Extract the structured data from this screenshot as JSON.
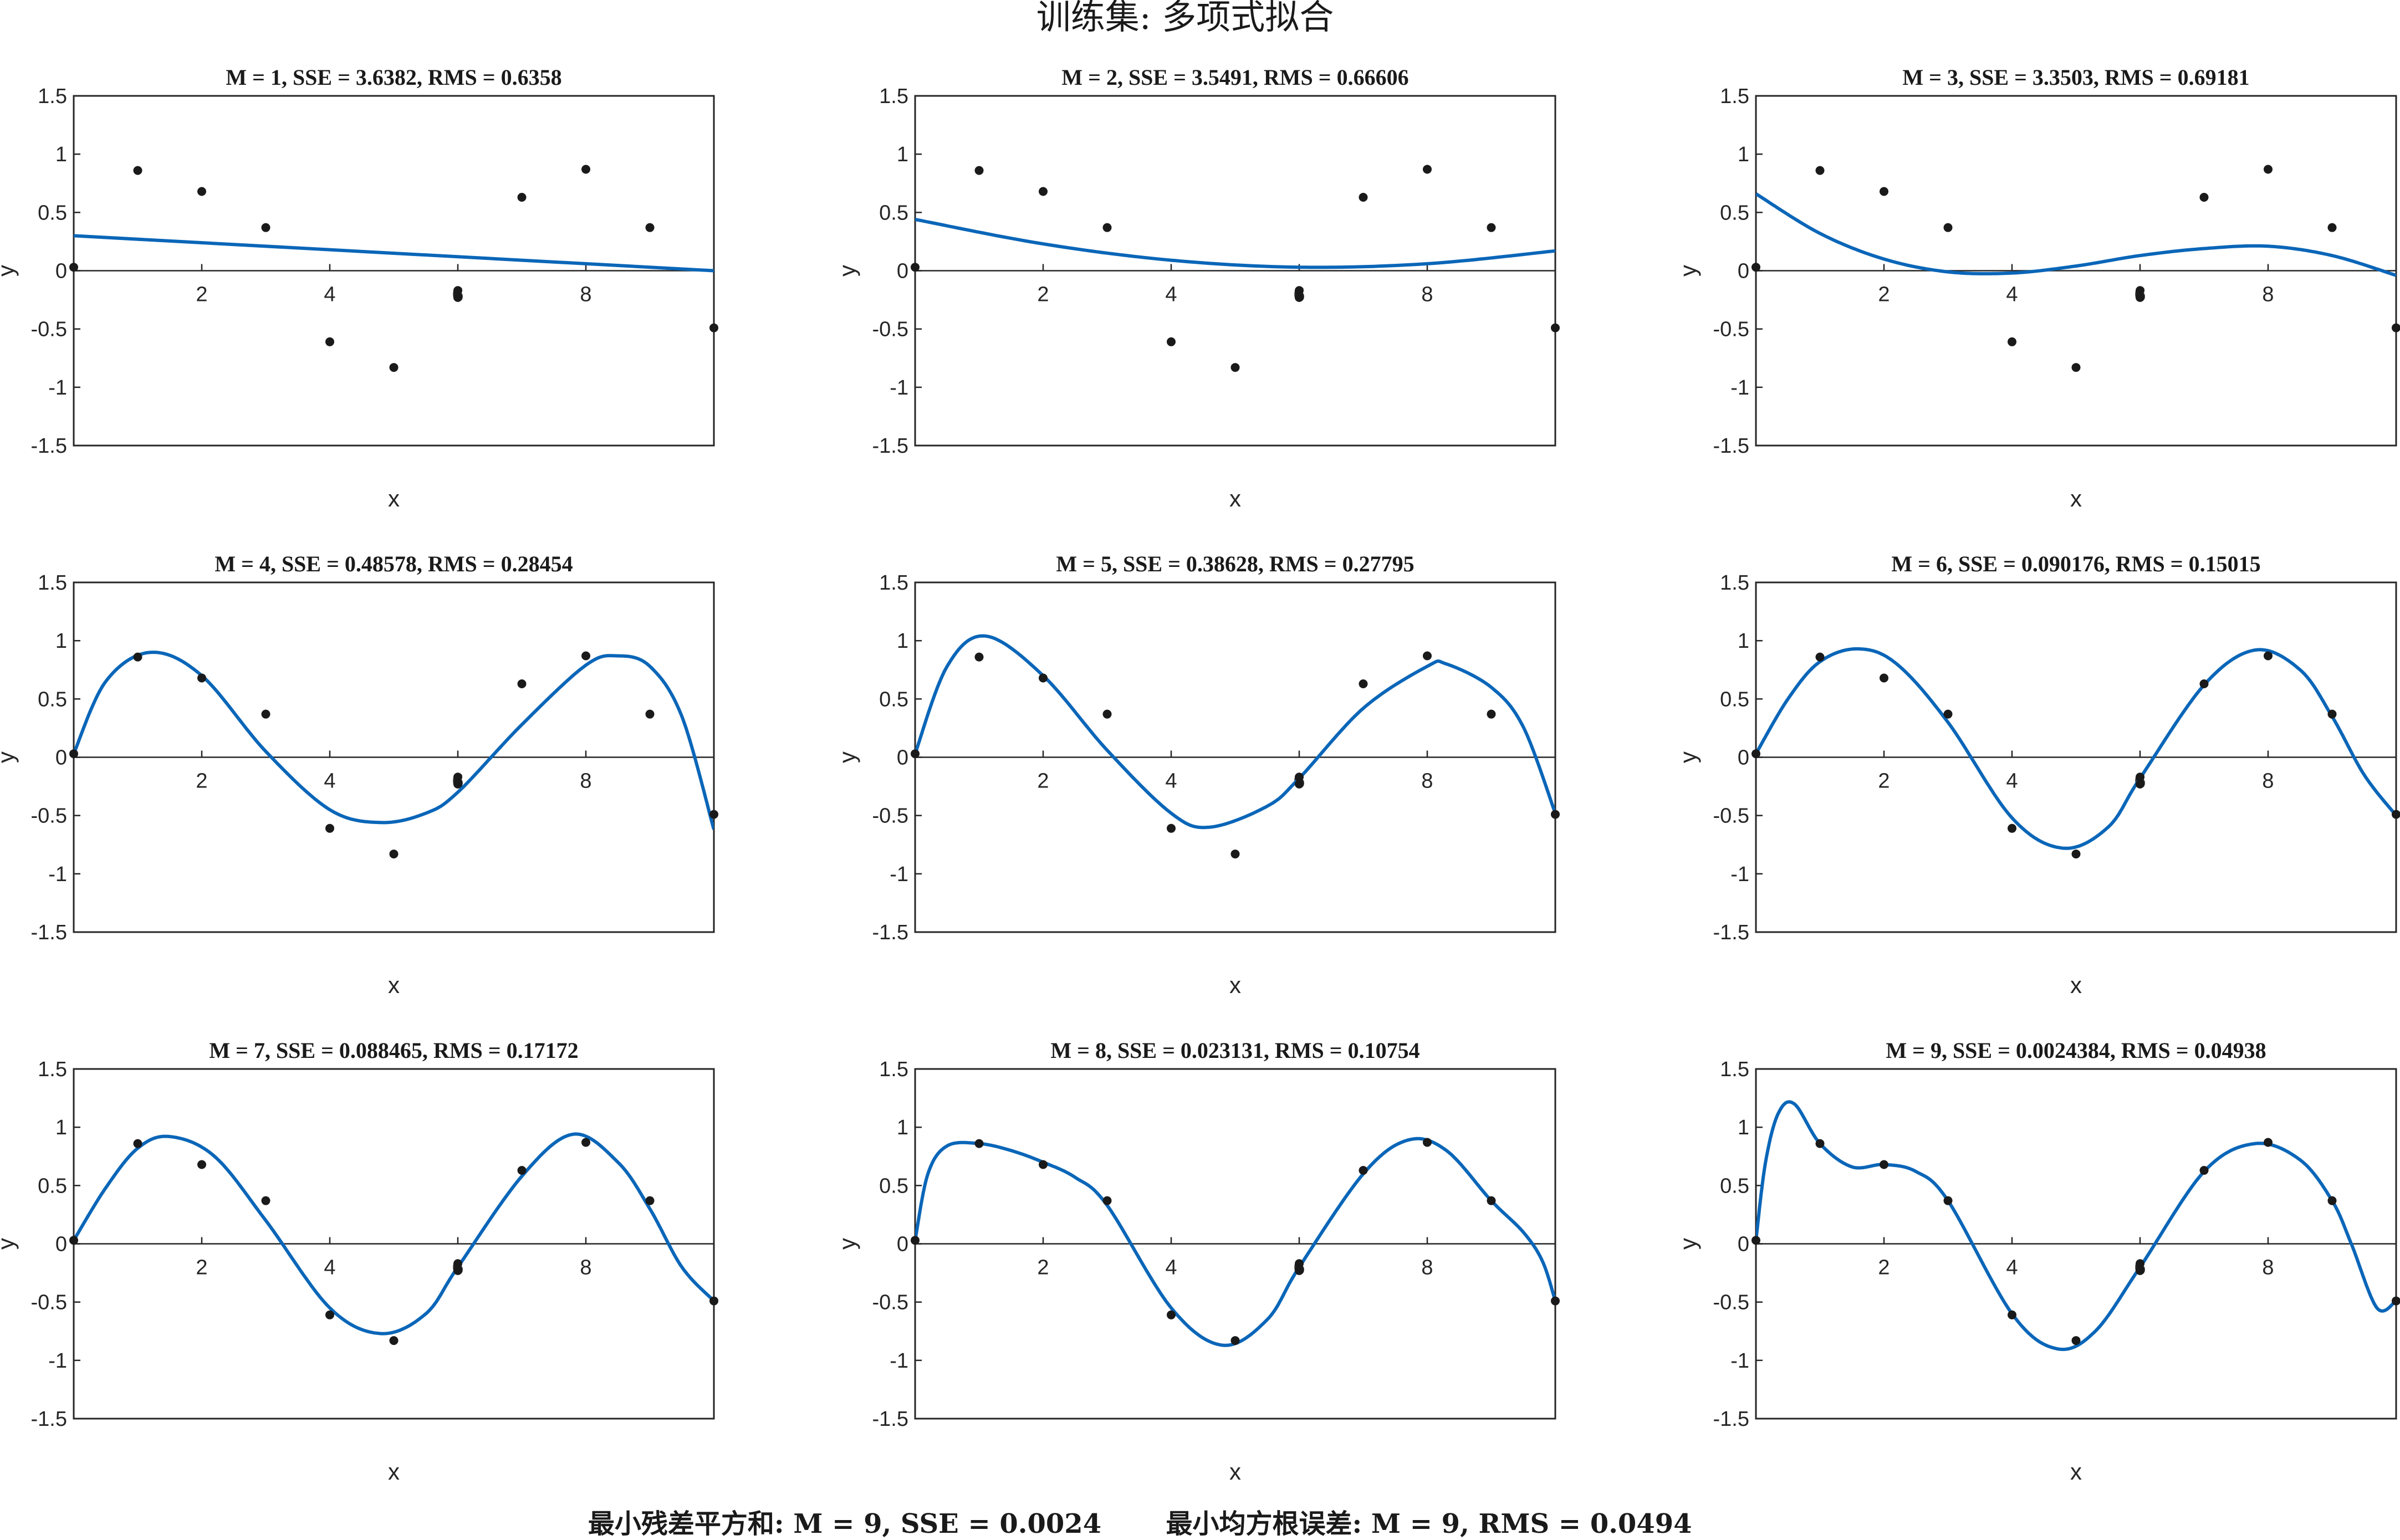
{
  "figure_title": "训练集: 多项式拟合",
  "summary": {
    "min_sse": "最小残差平方和: M = 9, SSE = 0.0024",
    "min_rms": "最小均方根误差: M = 9, RMS = 0.0494"
  },
  "chart_data": [
    {
      "type": "line",
      "title": "M = 1, SSE = 3.6382, RMS = 0.6358",
      "xlabel": "x",
      "ylabel": "y",
      "xlim": [
        0,
        10
      ],
      "ylim": [
        -1.5,
        1.5
      ],
      "xticks": [
        2,
        4,
        6,
        8
      ],
      "yticks": [
        1.5,
        1,
        0.5,
        0,
        -0.5,
        -1,
        -1.5
      ],
      "points": {
        "x": [
          0,
          1,
          2,
          3,
          4,
          5,
          6,
          6,
          7,
          8,
          9,
          10
        ],
        "y": [
          0.03,
          0.86,
          0.68,
          0.37,
          -0.61,
          -0.83,
          -0.17,
          -0.23,
          0.63,
          0.87,
          0.37,
          -0.49
        ]
      },
      "fit": {
        "x": [
          0,
          10
        ],
        "y": [
          0.3,
          0.0
        ]
      }
    },
    {
      "type": "line",
      "title": "M = 2, SSE = 3.5491, RMS = 0.66606",
      "xlabel": "x",
      "ylabel": "y",
      "xlim": [
        0,
        10
      ],
      "ylim": [
        -1.5,
        1.5
      ],
      "xticks": [
        2,
        4,
        6,
        8
      ],
      "yticks": [
        1.5,
        1,
        0.5,
        0,
        -0.5,
        -1,
        -1.5
      ],
      "points": {
        "x": [
          0,
          1,
          2,
          3,
          4,
          5,
          6,
          6,
          7,
          8,
          9,
          10
        ],
        "y": [
          0.03,
          0.86,
          0.68,
          0.37,
          -0.61,
          -0.83,
          -0.17,
          -0.23,
          0.63,
          0.87,
          0.37,
          -0.49
        ]
      },
      "fit": {
        "x": [
          0,
          2,
          4,
          6,
          8,
          10
        ],
        "y": [
          0.44,
          0.23,
          0.09,
          0.03,
          0.06,
          0.17
        ]
      }
    },
    {
      "type": "line",
      "title": "M = 3, SSE = 3.3503, RMS = 0.69181",
      "xlabel": "x",
      "ylabel": "y",
      "xlim": [
        0,
        10
      ],
      "ylim": [
        -1.5,
        1.5
      ],
      "xticks": [
        2,
        4,
        6,
        8
      ],
      "yticks": [
        1.5,
        1,
        0.5,
        0,
        -0.5,
        -1,
        -1.5
      ],
      "points": {
        "x": [
          0,
          1,
          2,
          3,
          4,
          5,
          6,
          6,
          7,
          8,
          9,
          10
        ],
        "y": [
          0.03,
          0.86,
          0.68,
          0.37,
          -0.61,
          -0.83,
          -0.17,
          -0.23,
          0.63,
          0.87,
          0.37,
          -0.49
        ]
      },
      "fit": {
        "x": [
          0,
          1,
          2,
          3,
          4,
          5,
          6,
          7,
          8,
          9,
          10
        ],
        "y": [
          0.66,
          0.32,
          0.1,
          -0.01,
          -0.02,
          0.04,
          0.13,
          0.19,
          0.21,
          0.13,
          -0.04
        ]
      }
    },
    {
      "type": "line",
      "title": "M = 4, SSE = 0.48578, RMS = 0.28454",
      "xlabel": "x",
      "ylabel": "y",
      "xlim": [
        0,
        10
      ],
      "ylim": [
        -1.5,
        1.5
      ],
      "xticks": [
        2,
        4,
        6,
        8
      ],
      "yticks": [
        1.5,
        1,
        0.5,
        0,
        -0.5,
        -1,
        -1.5
      ],
      "points": {
        "x": [
          0,
          1,
          2,
          3,
          4,
          5,
          6,
          6,
          7,
          8,
          9,
          10
        ],
        "y": [
          0.03,
          0.86,
          0.68,
          0.37,
          -0.61,
          -0.83,
          -0.17,
          -0.23,
          0.63,
          0.87,
          0.37,
          -0.49
        ]
      },
      "fit": {
        "x": [
          0,
          0.5,
          1.2,
          2,
          3,
          4,
          4.8,
          5.5,
          6,
          7,
          8,
          8.5,
          9,
          9.5,
          10
        ],
        "y": [
          0.03,
          0.65,
          0.9,
          0.7,
          0.05,
          -0.45,
          -0.56,
          -0.48,
          -0.3,
          0.28,
          0.79,
          0.87,
          0.78,
          0.35,
          -0.62
        ]
      }
    },
    {
      "type": "line",
      "title": "M = 5, SSE = 0.38628, RMS = 0.27795",
      "xlabel": "x",
      "ylabel": "y",
      "xlim": [
        0,
        10
      ],
      "ylim": [
        -1.5,
        1.5
      ],
      "xticks": [
        2,
        4,
        6,
        8
      ],
      "yticks": [
        1.5,
        1,
        0.5,
        0,
        -0.5,
        -1,
        -1.5
      ],
      "points": {
        "x": [
          0,
          1,
          2,
          3,
          4,
          5,
          6,
          6,
          7,
          8,
          9,
          10
        ],
        "y": [
          0.03,
          0.86,
          0.68,
          0.37,
          -0.61,
          -0.83,
          -0.17,
          -0.23,
          0.63,
          0.87,
          0.37,
          -0.49
        ]
      },
      "fit": {
        "x": [
          0,
          0.5,
          1.1,
          2,
          3,
          4,
          4.6,
          5.5,
          6,
          7,
          8,
          8.3,
          9,
          9.5,
          10
        ],
        "y": [
          0.03,
          0.78,
          1.04,
          0.7,
          0.06,
          -0.48,
          -0.6,
          -0.42,
          -0.18,
          0.42,
          0.78,
          0.8,
          0.6,
          0.26,
          -0.48
        ]
      }
    },
    {
      "type": "line",
      "title": "M = 6, SSE = 0.090176, RMS = 0.15015",
      "xlabel": "x",
      "ylabel": "y",
      "xlim": [
        0,
        10
      ],
      "ylim": [
        -1.5,
        1.5
      ],
      "xticks": [
        2,
        4,
        6,
        8
      ],
      "yticks": [
        1.5,
        1,
        0.5,
        0,
        -0.5,
        -1,
        -1.5
      ],
      "points": {
        "x": [
          0,
          1,
          2,
          3,
          4,
          5,
          6,
          6,
          7,
          8,
          9,
          10
        ],
        "y": [
          0.03,
          0.86,
          0.68,
          0.37,
          -0.61,
          -0.83,
          -0.17,
          -0.23,
          0.63,
          0.87,
          0.37,
          -0.49
        ]
      },
      "fit": {
        "x": [
          0,
          0.5,
          1,
          1.6,
          2.2,
          3,
          4,
          4.8,
          5.5,
          6,
          7,
          7.8,
          8.5,
          9,
          9.5,
          10
        ],
        "y": [
          0.03,
          0.5,
          0.82,
          0.93,
          0.8,
          0.3,
          -0.52,
          -0.78,
          -0.6,
          -0.18,
          0.62,
          0.92,
          0.75,
          0.35,
          -0.15,
          -0.5
        ]
      }
    },
    {
      "type": "line",
      "title": "M = 7, SSE = 0.088465, RMS = 0.17172",
      "xlabel": "x",
      "ylabel": "y",
      "xlim": [
        0,
        10
      ],
      "ylim": [
        -1.5,
        1.5
      ],
      "xticks": [
        2,
        4,
        6,
        8
      ],
      "yticks": [
        1.5,
        1,
        0.5,
        0,
        -0.5,
        -1,
        -1.5
      ],
      "points": {
        "x": [
          0,
          1,
          2,
          3,
          4,
          5,
          6,
          6,
          7,
          8,
          9,
          10
        ],
        "y": [
          0.03,
          0.86,
          0.68,
          0.37,
          -0.61,
          -0.83,
          -0.17,
          -0.23,
          0.63,
          0.87,
          0.37,
          -0.49
        ]
      },
      "fit": {
        "x": [
          0,
          0.5,
          1,
          1.5,
          2.2,
          3,
          4,
          4.8,
          5.5,
          6,
          7,
          7.8,
          8.5,
          9,
          9.5,
          10
        ],
        "y": [
          0.03,
          0.48,
          0.82,
          0.92,
          0.75,
          0.2,
          -0.55,
          -0.77,
          -0.6,
          -0.2,
          0.58,
          0.94,
          0.7,
          0.3,
          -0.2,
          -0.49
        ]
      }
    },
    {
      "type": "line",
      "title": "M = 8, SSE = 0.023131, RMS = 0.10754",
      "xlabel": "x",
      "ylabel": "y",
      "xlim": [
        0,
        10
      ],
      "ylim": [
        -1.5,
        1.5
      ],
      "xticks": [
        2,
        4,
        6,
        8
      ],
      "yticks": [
        1.5,
        1,
        0.5,
        0,
        -0.5,
        -1,
        -1.5
      ],
      "points": {
        "x": [
          0,
          1,
          2,
          3,
          4,
          5,
          6,
          6,
          7,
          8,
          9,
          10
        ],
        "y": [
          0.03,
          0.86,
          0.68,
          0.37,
          -0.61,
          -0.83,
          -0.17,
          -0.23,
          0.63,
          0.87,
          0.37,
          -0.49
        ]
      },
      "fit": {
        "x": [
          0,
          0.2,
          0.5,
          1,
          1.5,
          2,
          2.5,
          3,
          4,
          4.8,
          5.5,
          6,
          7,
          7.7,
          8.3,
          9,
          9.5,
          9.8,
          10
        ],
        "y": [
          0.03,
          0.6,
          0.84,
          0.86,
          0.8,
          0.7,
          0.57,
          0.33,
          -0.55,
          -0.87,
          -0.65,
          -0.2,
          0.6,
          0.89,
          0.8,
          0.37,
          0.1,
          -0.15,
          -0.49
        ]
      }
    },
    {
      "type": "line",
      "title": "M = 9, SSE = 0.0024384, RMS = 0.04938",
      "xlabel": "x",
      "ylabel": "y",
      "xlim": [
        0,
        10
      ],
      "ylim": [
        -1.5,
        1.5
      ],
      "xticks": [
        2,
        4,
        6,
        8
      ],
      "yticks": [
        1.5,
        1,
        0.5,
        0,
        -0.5,
        -1,
        -1.5
      ],
      "points": {
        "x": [
          0,
          1,
          2,
          3,
          4,
          5,
          6,
          6,
          7,
          8,
          9,
          10
        ],
        "y": [
          0.03,
          0.86,
          0.68,
          0.37,
          -0.61,
          -0.83,
          -0.17,
          -0.23,
          0.63,
          0.87,
          0.37,
          -0.49
        ]
      },
      "fit": {
        "x": [
          0,
          0.15,
          0.35,
          0.6,
          1,
          1.5,
          2,
          2.5,
          3,
          4,
          4.7,
          5.3,
          6,
          7,
          7.8,
          8.5,
          9,
          9.3,
          9.7,
          10
        ],
        "y": [
          0.03,
          0.7,
          1.12,
          1.2,
          0.86,
          0.66,
          0.68,
          0.62,
          0.37,
          -0.6,
          -0.9,
          -0.75,
          -0.2,
          0.62,
          0.86,
          0.72,
          0.37,
          0.0,
          -0.55,
          -0.49
        ]
      }
    }
  ]
}
